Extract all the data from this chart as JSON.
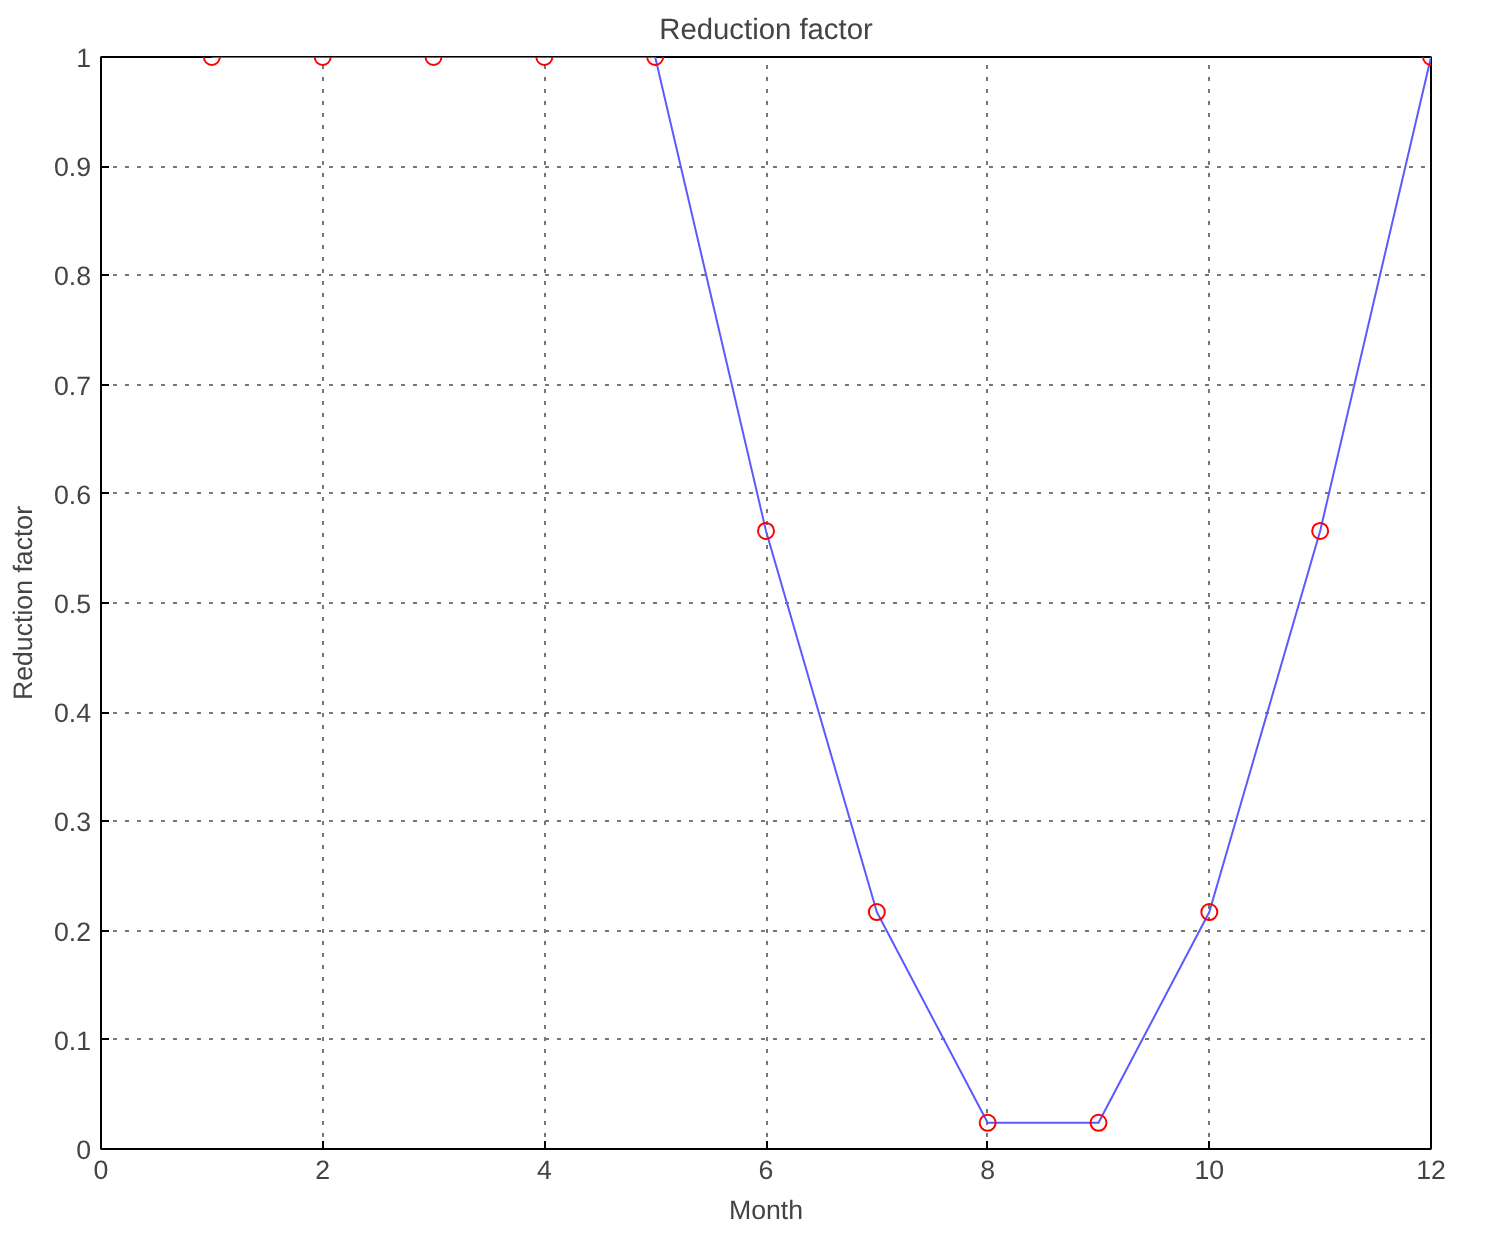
{
  "chart_data": {
    "type": "line",
    "title": "Reduction factor",
    "xlabel": "Month",
    "ylabel": "Reduction factor",
    "x": [
      1,
      2,
      3,
      4,
      5,
      6,
      7,
      8,
      9,
      10,
      11,
      12
    ],
    "series": [
      {
        "color": "#5a5aff",
        "marker": "none",
        "values": [
          1,
          1,
          1,
          1,
          1,
          0.566,
          0.217,
          0.024,
          0.024,
          0.217,
          0.566,
          1
        ]
      },
      {
        "type": "scatter",
        "color": "#ff0000",
        "marker": "circle",
        "values": [
          1,
          1,
          1,
          1,
          1,
          0.566,
          0.217,
          0.024,
          0.024,
          0.217,
          0.566,
          1
        ]
      }
    ],
    "xlim": [
      0,
      12
    ],
    "xticks": [
      0,
      2,
      4,
      6,
      8,
      10,
      12
    ],
    "ylim": [
      0,
      1
    ],
    "yticks": [
      0,
      0.1,
      0.2,
      0.3,
      0.4,
      0.5,
      0.6,
      0.7,
      0.8,
      0.9,
      1
    ],
    "grid": true
  }
}
